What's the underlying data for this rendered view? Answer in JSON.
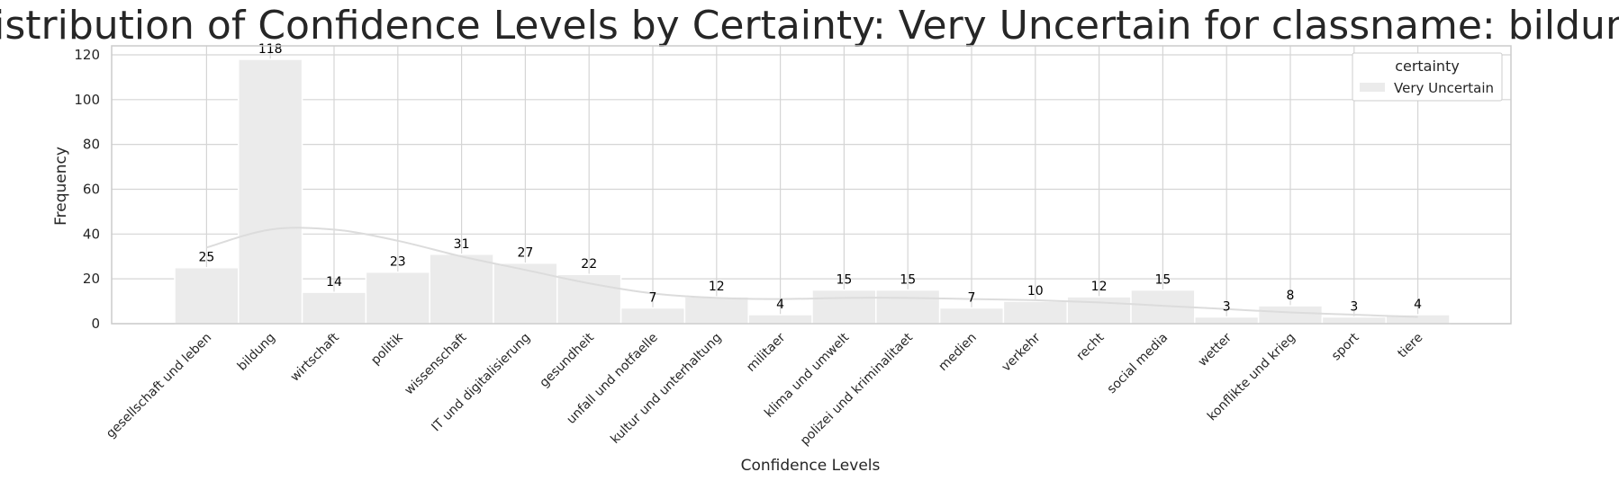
{
  "chart_data": {
    "type": "bar",
    "title": "Distribution of Confidence Levels by Certainty: Very Uncertain for classname: bildung",
    "xlabel": "Confidence Levels",
    "ylabel": "Frequency",
    "ylim": [
      0,
      124
    ],
    "yticks": [
      0,
      20,
      40,
      60,
      80,
      100,
      120
    ],
    "grid": true,
    "legend": {
      "title": "certainty",
      "placement": "top-right",
      "entries": [
        "Very Uncertain"
      ]
    },
    "categories": [
      "gesellschaft und leben",
      "bildung",
      "wirtschaft",
      "politik",
      "wissenschaft",
      "IT und digitalisierung",
      "gesundheit",
      "unfall und notfaelle",
      "kultur und unterhaltung",
      "militaer",
      "klima und umwelt",
      "polizei und kriminalitaet",
      "medien",
      "verkehr",
      "recht",
      "social media",
      "wetter",
      "konflikte und krieg",
      "sport",
      "tiere"
    ],
    "series": [
      {
        "name": "Very Uncertain",
        "values": [
          25,
          118,
          14,
          23,
          31,
          27,
          22,
          7,
          12,
          4,
          15,
          15,
          7,
          10,
          12,
          15,
          3,
          8,
          3,
          4
        ]
      }
    ],
    "data_labels": [
      "25",
      "118",
      "14",
      "23",
      "31",
      "27",
      "22",
      "7",
      "12",
      "4",
      "15",
      "15",
      "7",
      "10",
      "12",
      "15",
      "3",
      "8",
      "3",
      "4"
    ],
    "kde": [
      34,
      42,
      42,
      37,
      30,
      24,
      18,
      13.5,
      11.5,
      11,
      11.5,
      11.5,
      11,
      10.5,
      9.5,
      8,
      6.5,
      5,
      4,
      3
    ],
    "colors": {
      "bar": "#ebebeb",
      "bar_edge": "#ffffff",
      "kde": "#dcdcdc",
      "grid": "#d5d5d5",
      "spine": "#cccccc"
    }
  }
}
